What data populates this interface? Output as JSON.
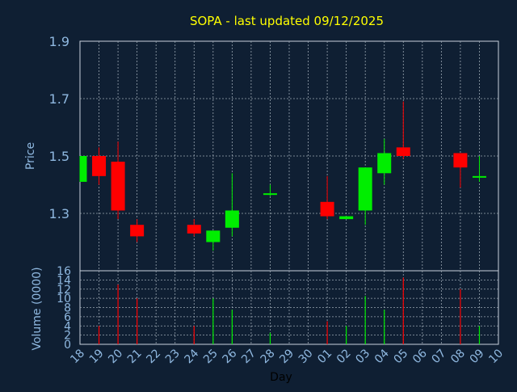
{
  "chart_data": {
    "type": "candlestick",
    "title": "SOPA - last updated 09/12/2025",
    "xlabel": "Day",
    "ylabel": "Price",
    "volume_label": "Volume (0000)",
    "price_ylim": [
      1.1,
      1.9
    ],
    "price_ticks": [
      "1.9",
      "1.7",
      "1.5",
      "1.3"
    ],
    "volume_ylim": [
      0,
      16
    ],
    "volume_ticks": [
      "16",
      "14",
      "12",
      "10",
      "8",
      "6",
      "4",
      "2",
      "0"
    ],
    "x_tick_labels": [
      "18",
      "19",
      "20",
      "21",
      "22",
      "23",
      "24",
      "25",
      "26",
      "27",
      "28",
      "29",
      "30",
      "01",
      "02",
      "03",
      "04",
      "05",
      "06",
      "07",
      "08",
      "09",
      "10"
    ],
    "grid": true,
    "colors": {
      "background": "#0f1f33",
      "title": "#ffff00",
      "axis_text": "#8fb8e0",
      "grid": "#9aa6b2",
      "up": "#00ee00",
      "down": "#ff0000"
    },
    "candles": [
      {
        "x": "18",
        "open": 1.41,
        "high": 1.5,
        "low": 1.41,
        "close": 1.5,
        "volume": 0
      },
      {
        "x": "19",
        "open": 1.5,
        "high": 1.53,
        "low": 1.4,
        "close": 1.43,
        "volume": 4
      },
      {
        "x": "20",
        "open": 1.48,
        "high": 1.55,
        "low": 1.28,
        "close": 1.31,
        "volume": 13
      },
      {
        "x": "21",
        "open": 1.26,
        "high": 1.28,
        "low": 1.2,
        "close": 1.22,
        "volume": 10
      },
      {
        "x": "24",
        "open": 1.26,
        "high": 1.28,
        "low": 1.22,
        "close": 1.23,
        "volume": 4
      },
      {
        "x": "25",
        "open": 1.2,
        "high": 1.24,
        "low": 1.17,
        "close": 1.24,
        "volume": 10
      },
      {
        "x": "26",
        "open": 1.25,
        "high": 1.44,
        "low": 1.22,
        "close": 1.31,
        "volume": 7.5
      },
      {
        "x": "28",
        "open": 1.37,
        "high": 1.4,
        "low": 1.36,
        "close": 1.37,
        "volume": 2.5
      },
      {
        "x": "01",
        "open": 1.34,
        "high": 1.43,
        "low": 1.28,
        "close": 1.29,
        "volume": 5
      },
      {
        "x": "02",
        "open": 1.28,
        "high": 1.29,
        "low": 1.28,
        "close": 1.29,
        "volume": 4
      },
      {
        "x": "03",
        "open": 1.31,
        "high": 1.46,
        "low": 1.26,
        "close": 1.46,
        "volume": 10.5
      },
      {
        "x": "04",
        "open": 1.44,
        "high": 1.56,
        "low": 1.4,
        "close": 1.51,
        "volume": 7.5
      },
      {
        "x": "05",
        "open": 1.53,
        "high": 1.69,
        "low": 1.49,
        "close": 1.5,
        "volume": 14.5
      },
      {
        "x": "08",
        "open": 1.51,
        "high": 1.51,
        "low": 1.39,
        "close": 1.46,
        "volume": 12
      },
      {
        "x": "09",
        "open": 1.43,
        "high": 1.5,
        "low": 1.41,
        "close": 1.43,
        "volume": 4
      }
    ]
  }
}
